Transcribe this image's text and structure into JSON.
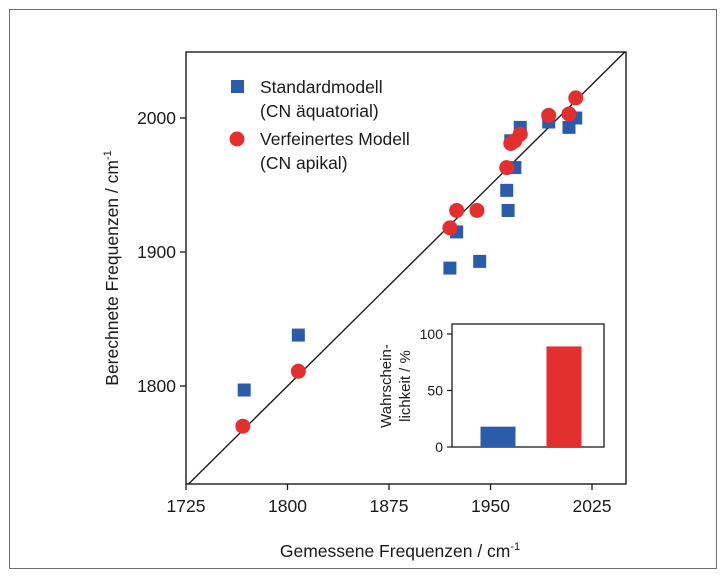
{
  "chart_data": [
    {
      "type": "scatter",
      "xlabel": "Gemessene Frequenzen / cm",
      "xlabel_sup": "-1",
      "ylabel": "Berechnete Frequenzen / cm",
      "ylabel_sup": "-1",
      "xlim": [
        1725,
        2050
      ],
      "ylim": [
        1730,
        2050
      ],
      "x_ticks": [
        1725,
        1800,
        1875,
        1950,
        2025
      ],
      "x_tick_labels": [
        "1725",
        "1800",
        "1875",
        "1950",
        "2025"
      ],
      "y_ticks": [
        1800,
        1900,
        2000
      ],
      "y_tick_labels": [
        "1800",
        "1900",
        "2000"
      ],
      "diagonal_line": true,
      "grid": false,
      "legend_position": "top-left",
      "series": [
        {
          "name": "Standardmodell",
          "name_line2": "(CN äquatorial)",
          "marker": "square",
          "color": "#2a5caa",
          "points": [
            [
              1768,
              1797
            ],
            [
              1808,
              1838
            ],
            [
              1920,
              1888
            ],
            [
              1925,
              1915
            ],
            [
              1942,
              1893
            ],
            [
              1962,
              1946
            ],
            [
              1963,
              1931
            ],
            [
              1965,
              1983
            ],
            [
              1968,
              1963
            ],
            [
              1972,
              1993
            ],
            [
              1993,
              1997
            ],
            [
              2008,
              1993
            ],
            [
              2013,
              2000
            ]
          ]
        },
        {
          "name": "Verfeinertes Modell",
          "name_line2": "(CN apikal)",
          "marker": "circle",
          "color": "#e3302f",
          "points": [
            [
              1767,
              1770
            ],
            [
              1808,
              1811
            ],
            [
              1920,
              1918
            ],
            [
              1925,
              1931
            ],
            [
              1940,
              1931
            ],
            [
              1962,
              1963
            ],
            [
              1965,
              1981
            ],
            [
              1968,
              1983
            ],
            [
              1972,
              1988
            ],
            [
              1993,
              2002
            ],
            [
              2008,
              2003
            ],
            [
              2013,
              2015
            ]
          ]
        }
      ]
    },
    {
      "type": "bar",
      "ylabel_line1": "Wahrschein-",
      "ylabel_line2": "lichkeit / %",
      "ylim": [
        0,
        100
      ],
      "y_ticks": [
        0,
        50,
        100
      ],
      "y_tick_labels": [
        "0",
        "50",
        "100"
      ],
      "categories": [
        "Standardmodell",
        "Verfeinertes Modell"
      ],
      "values": [
        18,
        89
      ],
      "colors": [
        "#2a5caa",
        "#e3302f"
      ],
      "position": "bottom-right inset"
    }
  ]
}
